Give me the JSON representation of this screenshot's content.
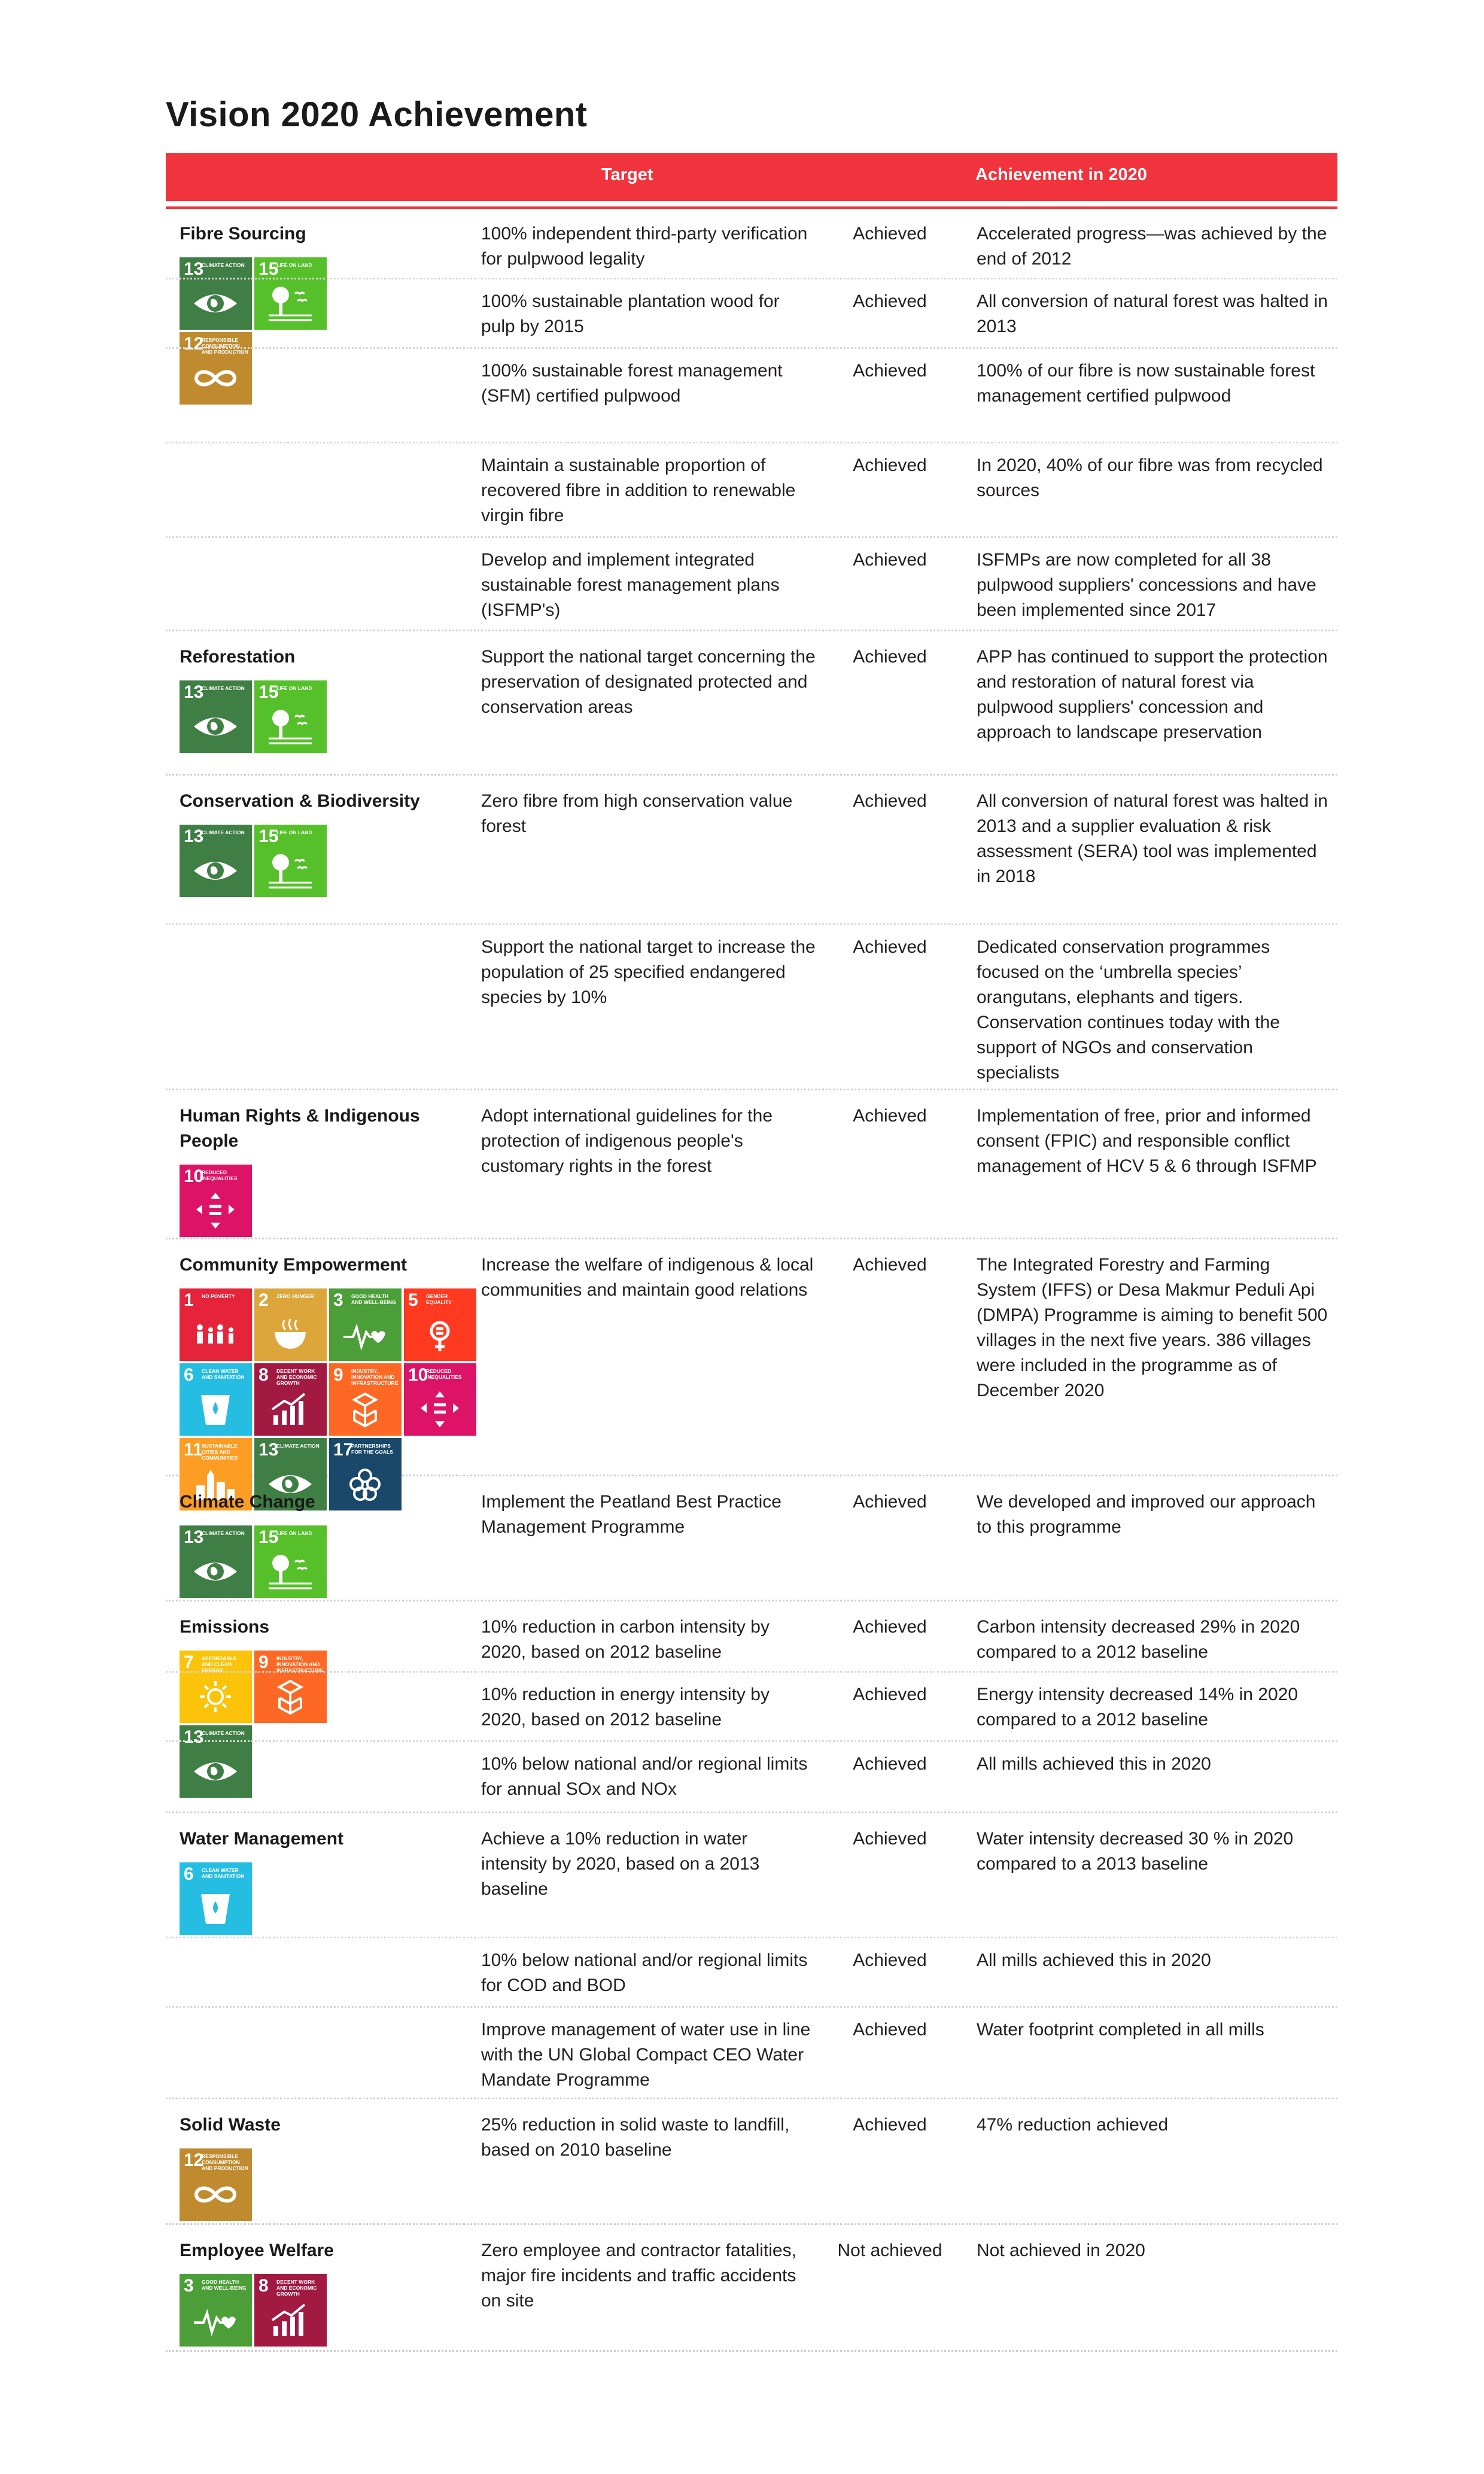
{
  "title": "Vision 2020 Achievement",
  "header": {
    "target": "Target",
    "achievement": "Achievement in 2020"
  },
  "sdg_labels": {
    "1": "No Poverty",
    "2": "Zero Hunger",
    "3": "Good Health and Well-Being",
    "5": "Gender Equality",
    "6": "Clean Water and Sanitation",
    "7": "Affordable and Clean Energy",
    "8": "Decent Work and Economic Growth",
    "9": "Industry, Innovation and Infrastructure",
    "10": "Reduced Inequalities",
    "11": "Sustainable Cities and Communities",
    "12": "Responsible Consumption and Production",
    "13": "Climate Action",
    "15": "Life on Land",
    "17": "Partnerships for the Goals"
  },
  "sdg_colors": {
    "1": "#e5243b",
    "2": "#dda63a",
    "3": "#4c9f38",
    "5": "#ff3a21",
    "6": "#26bde2",
    "7": "#fcc30b",
    "8": "#a21942",
    "9": "#fd6925",
    "10": "#dd1367",
    "11": "#fd9d24",
    "12": "#bf8b2e",
    "13": "#3f7e44",
    "15": "#56c02b",
    "17": "#19486a"
  },
  "sections": [
    {
      "name": "Fibre Sourcing",
      "sdgs": [
        13,
        15,
        12
      ],
      "rows": [
        {
          "target": "100% independent third-party verification for pulpwood legality",
          "status": "Achieved",
          "achievement": "Accelerated progress—was achieved by the end of 2012"
        },
        {
          "target": "100% sustainable plantation wood for pulp by 2015",
          "status": "Achieved",
          "achievement": "All conversion of natural forest was halted in 2013"
        },
        {
          "target": "100% sustainable forest management (SFM) certified pulpwood",
          "status": "Achieved",
          "achievement": "100% of our fibre is now sustainable forest management certified pulpwood"
        },
        {
          "target": "Maintain a sustainable proportion of recovered fibre in addition to renewable virgin fibre",
          "status": "Achieved",
          "achievement": "In 2020, 40% of our fibre was from recycled sources"
        },
        {
          "target": "Develop and implement integrated sustainable forest management plans (ISFMP's)",
          "status": "Achieved",
          "achievement": "ISFMPs are now completed for all 38 pulpwood suppliers' concessions and have been implemented since 2017"
        }
      ]
    },
    {
      "name": "Reforestation",
      "sdgs": [
        13,
        15
      ],
      "rows": [
        {
          "target": "Support the national target concerning the preservation of designated protected and conservation areas",
          "status": "Achieved",
          "achievement": "APP has continued to support the protection and restoration of natural forest via pulpwood suppliers' concession and approach to landscape preservation"
        }
      ]
    },
    {
      "name": "Conservation & Biodiversity",
      "sdgs": [
        13,
        15
      ],
      "rows": [
        {
          "target": "Zero fibre from high conservation value forest",
          "status": "Achieved",
          "achievement": "All conversion of natural forest was halted in 2013 and a supplier evaluation & risk assessment (SERA) tool was implemented in 2018"
        },
        {
          "target": "Support the national target to increase the population of 25 specified endangered species by 10%",
          "status": "Achieved",
          "achievement": "Dedicated conservation programmes focused on the ‘umbrella species’ orangutans, elephants and tigers. Conservation continues today with the support of NGOs and conservation specialists"
        }
      ]
    },
    {
      "name": "Human Rights & Indigenous People",
      "sdgs": [
        10
      ],
      "rows": [
        {
          "target": "Adopt international guidelines for the protection of indigenous people's customary rights in the forest",
          "status": "Achieved",
          "achievement": "Implementation of free, prior and informed consent (FPIC) and responsible conflict management of HCV 5 & 6 through ISFMP"
        }
      ]
    },
    {
      "name": "Community Empowerment",
      "sdgs": [
        1,
        2,
        3,
        5,
        6,
        8,
        9,
        10,
        11,
        13,
        17
      ],
      "rows": [
        {
          "target": "Increase the welfare of indigenous & local communities and maintain good relations",
          "status": "Achieved",
          "achievement": "The Integrated Forestry and Farming System (IFFS) or Desa Makmur Peduli Api (DMPA) Programme is aiming to benefit 500 villages in the next five years. 386 villages were included in the programme as of December 2020"
        }
      ]
    },
    {
      "name": "Climate Change",
      "sdgs": [
        13,
        15
      ],
      "rows": [
        {
          "target": "Implement the Peatland Best Practice Management Programme",
          "status": "Achieved",
          "achievement": "We developed and improved our approach to this programme"
        }
      ]
    },
    {
      "name": "Emissions",
      "sdgs": [
        7,
        9,
        13
      ],
      "rows": [
        {
          "target": "10% reduction in carbon intensity by 2020, based on 2012 baseline",
          "status": "Achieved",
          "achievement": "Carbon intensity decreased 29% in 2020 compared to a 2012 baseline"
        },
        {
          "target": "10% reduction in energy intensity by 2020, based on 2012 baseline",
          "status": "Achieved",
          "achievement": "Energy intensity decreased 14% in 2020 compared to a 2012 baseline"
        },
        {
          "target": "10% below national and/or regional limits for annual SOx and NOx",
          "status": "Achieved",
          "achievement": "All mills achieved this in 2020"
        }
      ]
    },
    {
      "name": "Water Management",
      "sdgs": [
        6
      ],
      "rows": [
        {
          "target": "Achieve a 10% reduction in water intensity by 2020, based on a 2013 baseline",
          "status": "Achieved",
          "achievement": "Water intensity decreased 30 % in 2020 compared to a 2013 baseline"
        },
        {
          "target": "10% below national and/or regional limits for COD and BOD",
          "status": "Achieved",
          "achievement": "All mills achieved this in 2020"
        },
        {
          "target": "Improve management of water use in line with the UN Global Compact CEO Water Mandate Programme",
          "status": "Achieved",
          "achievement": "Water footprint completed in all mills"
        }
      ]
    },
    {
      "name": "Solid Waste",
      "sdgs": [
        12
      ],
      "rows": [
        {
          "target": "25% reduction in solid waste to landfill, based on 2010 baseline",
          "status": "Achieved",
          "achievement": "47% reduction achieved"
        }
      ]
    },
    {
      "name": "Employee Welfare",
      "sdgs": [
        3,
        8
      ],
      "rows": [
        {
          "target": "Zero employee and contractor fatalities, major fire incidents and traffic accidents on site",
          "status": "Not achieved",
          "achievement": "Not achieved in 2020"
        }
      ]
    }
  ]
}
